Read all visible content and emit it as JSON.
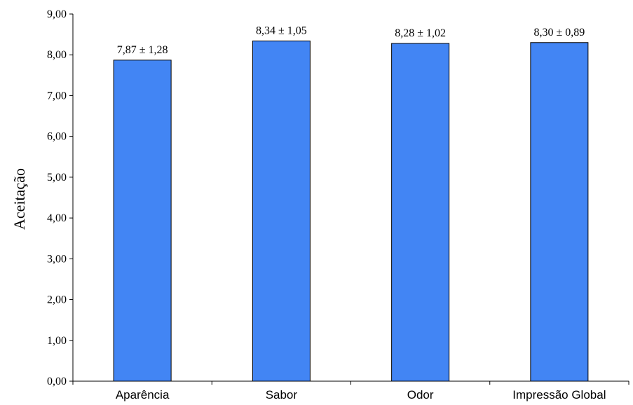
{
  "chart_data": {
    "type": "bar",
    "categories": [
      "Aparência",
      "Sabor",
      "Odor",
      "Impressão Global"
    ],
    "values": [
      7.87,
      8.34,
      8.28,
      8.3
    ],
    "data_labels": [
      "7,87 ± 1,28",
      "8,34 ± 1,05",
      "8,28 ± 1,02",
      "8,30 ± 0,89"
    ],
    "ylabel": "Aceitação",
    "xlabel": "",
    "ylim": [
      0,
      9
    ],
    "yticks": [
      "0,00",
      "1,00",
      "2,00",
      "3,00",
      "4,00",
      "5,00",
      "6,00",
      "7,00",
      "8,00",
      "9,00"
    ],
    "grid": false,
    "legend": "none",
    "bar_color": "#4285F4",
    "bar_edge_color": "#000000"
  }
}
